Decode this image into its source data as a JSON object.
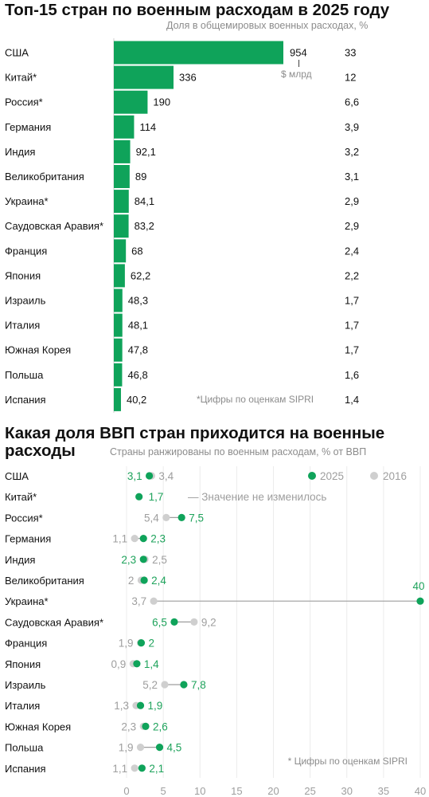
{
  "chart_data": [
    {
      "type": "bar",
      "title": "Топ-15 стран по военным расходам в 2025 году",
      "share_header": "Доля в общемировых военных расходах, %",
      "unit_label": "$ млрд",
      "note": "*Цифры по оценкам SIPRI",
      "categories": [
        "США",
        "Китай*",
        "Россия*",
        "Германия",
        "Индия",
        "Великобритания",
        "Украина*",
        "Саудовская Аравия*",
        "Франция",
        "Япония",
        "Израиль",
        "Италия",
        "Южная Корея",
        "Польша",
        "Испания"
      ],
      "values": [
        954,
        336,
        190,
        114,
        92.1,
        89,
        84.1,
        83.2,
        68,
        62.2,
        48.3,
        48.1,
        47.8,
        46.8,
        40.2
      ],
      "value_labels": [
        "954",
        "336",
        "190",
        "114",
        "92,1",
        "89",
        "84,1",
        "83,2",
        "68",
        "62,2",
        "48,3",
        "48,1",
        "47,8",
        "46,8",
        "40,2"
      ],
      "shares": [
        "33",
        "12",
        "6,6",
        "3,9",
        "3,2",
        "3,1",
        "2,9",
        "2,9",
        "2,4",
        "2,2",
        "1,7",
        "1,7",
        "1,7",
        "1,6",
        "1,4"
      ],
      "colors": {
        "bar": "#0fa35a",
        "text": "#111111",
        "muted": "#8c8c8c"
      }
    },
    {
      "type": "scatter",
      "title": "Какая доля ВВП стран приходится на военные расходы",
      "subtitle": "Страны ранжированы по военным расходам, % от ВВП",
      "note": "* Цифры по оценкам SIPRI",
      "annotation": "— Значение не изменилось",
      "series": [
        {
          "name": "2025",
          "color": "#0fa35a",
          "values": [
            3.1,
            1.7,
            7.5,
            2.3,
            2.3,
            2.4,
            40,
            6.5,
            2,
            1.4,
            7.8,
            1.9,
            2.6,
            4.5,
            2.1
          ],
          "labels": [
            "3,1",
            "1,7",
            "7,5",
            "2,3",
            "2,3",
            "2,4",
            "40",
            "6,5",
            "2",
            "1,4",
            "7,8",
            "1,9",
            "2,6",
            "4,5",
            "2,1"
          ]
        },
        {
          "name": "2016",
          "color": "#cfcfcf",
          "values": [
            3.4,
            null,
            5.4,
            1.1,
            2.5,
            2.0,
            3.7,
            9.2,
            1.9,
            0.9,
            5.2,
            1.3,
            2.3,
            1.9,
            1.1
          ],
          "labels": [
            "3,4",
            "",
            "5,4",
            "1,1",
            "2,5",
            "2",
            "3,7",
            "9,2",
            "1,9",
            "0,9",
            "5,2",
            "1,3",
            "2,3",
            "1,9",
            "1,1"
          ]
        }
      ],
      "categories": [
        "США",
        "Китай*",
        "Россия*",
        "Германия",
        "Индия",
        "Великобритания",
        "Украина*",
        "Саудовская Аравия*",
        "Франция",
        "Япония",
        "Израиль",
        "Италия",
        "Южная Корея",
        "Польша",
        "Испания"
      ],
      "x_ticks": [
        0,
        5,
        10,
        15,
        20,
        25,
        30,
        35,
        40
      ],
      "xlim": [
        0,
        40
      ]
    }
  ]
}
